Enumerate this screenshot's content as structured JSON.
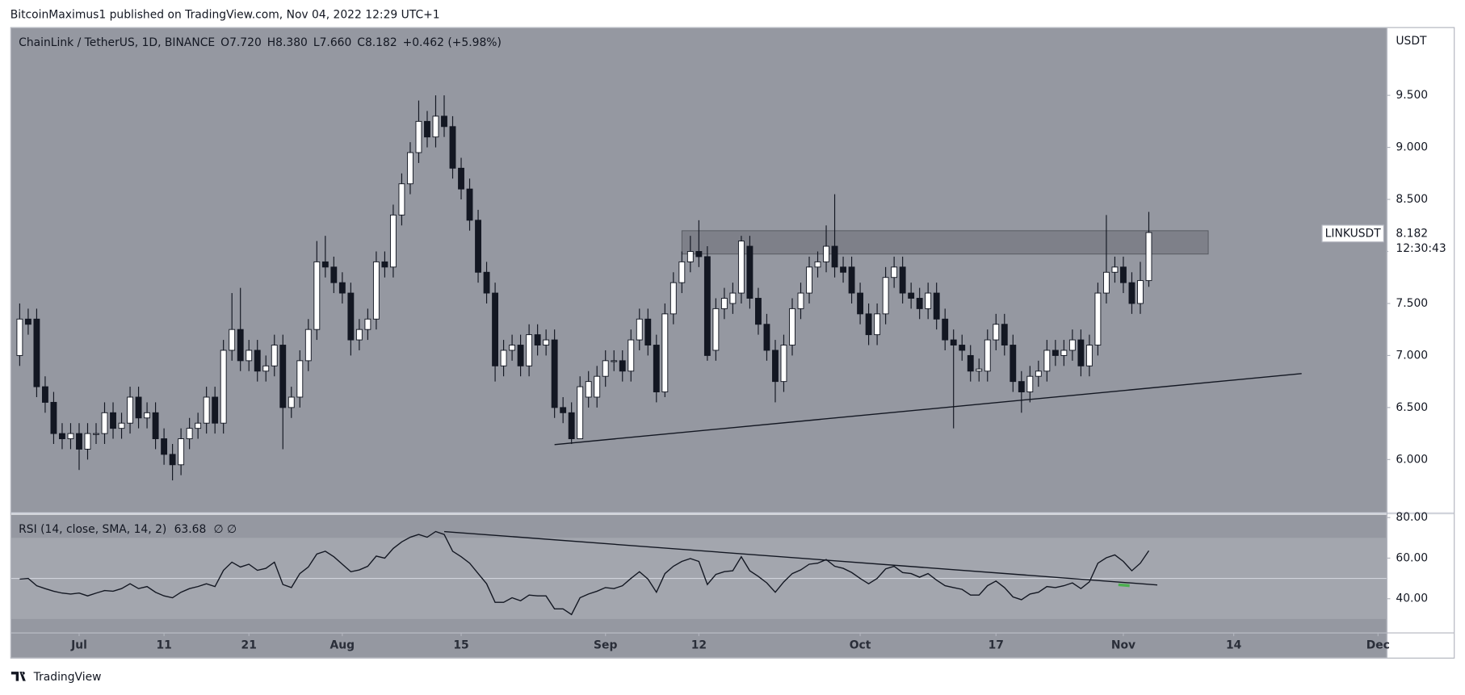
{
  "published": "BitcoinMaximus1 published on TradingView.com, Nov 04, 2022 12:29 UTC+1",
  "footer": "TradingView",
  "chart_data": {
    "type": "candlestick",
    "legend": {
      "symbol": "ChainLink / TetherUS, 1D, BINANCE",
      "fields": [
        {
          "key": "O",
          "value": "7.720"
        },
        {
          "key": "H",
          "value": "8.380"
        },
        {
          "key": "L",
          "value": "7.660"
        },
        {
          "key": "C",
          "value": "8.182"
        }
      ],
      "change": "+0.462 (+5.98%)"
    },
    "scale_label": "USDT",
    "price_label": {
      "symbol": "LINKUSDT",
      "countdown": "12:30:43"
    },
    "up_color": "#ffffff",
    "down_color": "#131722",
    "background": "#9598a1",
    "x": [
      "2022-06-24",
      "2022-06-25",
      "2022-06-26",
      "2022-06-27",
      "2022-06-28",
      "2022-06-29",
      "2022-06-30",
      "2022-07-01",
      "2022-07-02",
      "2022-07-03",
      "2022-07-04",
      "2022-07-05",
      "2022-07-06",
      "2022-07-07",
      "2022-07-08",
      "2022-07-09",
      "2022-07-10",
      "2022-07-11",
      "2022-07-12",
      "2022-07-13",
      "2022-07-14",
      "2022-07-15",
      "2022-07-16",
      "2022-07-17",
      "2022-07-18",
      "2022-07-19",
      "2022-07-20",
      "2022-07-21",
      "2022-07-22",
      "2022-07-23",
      "2022-07-24",
      "2022-07-25",
      "2022-07-26",
      "2022-07-27",
      "2022-07-28",
      "2022-07-29",
      "2022-07-30",
      "2022-07-31",
      "2022-08-01",
      "2022-08-02",
      "2022-08-03",
      "2022-08-04",
      "2022-08-05",
      "2022-08-06",
      "2022-08-07",
      "2022-08-08",
      "2022-08-09",
      "2022-08-10",
      "2022-08-11",
      "2022-08-12",
      "2022-08-13",
      "2022-08-14",
      "2022-08-15",
      "2022-08-16",
      "2022-08-17",
      "2022-08-18",
      "2022-08-19",
      "2022-08-20",
      "2022-08-21",
      "2022-08-22",
      "2022-08-23",
      "2022-08-24",
      "2022-08-25",
      "2022-08-26",
      "2022-08-27",
      "2022-08-28",
      "2022-08-29",
      "2022-08-30",
      "2022-08-31",
      "2022-09-01",
      "2022-09-02",
      "2022-09-03",
      "2022-09-04",
      "2022-09-05",
      "2022-09-06",
      "2022-09-07",
      "2022-09-08",
      "2022-09-09",
      "2022-09-10",
      "2022-09-11",
      "2022-09-12",
      "2022-09-13",
      "2022-09-14",
      "2022-09-15",
      "2022-09-16",
      "2022-09-17",
      "2022-09-18",
      "2022-09-19",
      "2022-09-20",
      "2022-09-21",
      "2022-09-22",
      "2022-09-23",
      "2022-09-24",
      "2022-09-25",
      "2022-09-26",
      "2022-09-27",
      "2022-09-28",
      "2022-09-29",
      "2022-09-30",
      "2022-10-01",
      "2022-10-02",
      "2022-10-03",
      "2022-10-04",
      "2022-10-05",
      "2022-10-06",
      "2022-10-07",
      "2022-10-08",
      "2022-10-09",
      "2022-10-10",
      "2022-10-11",
      "2022-10-12",
      "2022-10-13",
      "2022-10-14",
      "2022-10-15",
      "2022-10-16",
      "2022-10-17",
      "2022-10-18",
      "2022-10-19",
      "2022-10-20",
      "2022-10-21",
      "2022-10-22",
      "2022-10-23",
      "2022-10-24",
      "2022-10-25",
      "2022-10-26",
      "2022-10-27",
      "2022-10-28",
      "2022-10-29",
      "2022-10-30",
      "2022-10-31",
      "2022-11-01",
      "2022-11-02",
      "2022-11-03",
      "2022-11-04"
    ],
    "open": [
      7.0,
      7.35,
      7.35,
      6.7,
      6.55,
      6.25,
      6.2,
      6.25,
      6.1,
      6.25,
      6.25,
      6.45,
      6.3,
      6.35,
      6.6,
      6.4,
      6.45,
      6.2,
      6.05,
      5.95,
      6.2,
      6.3,
      6.35,
      6.6,
      6.35,
      7.05,
      7.25,
      6.95,
      7.05,
      6.85,
      6.9,
      7.1,
      6.5,
      6.6,
      6.95,
      7.25,
      7.9,
      7.85,
      7.7,
      7.6,
      7.15,
      7.25,
      7.35,
      7.9,
      7.85,
      8.35,
      8.65,
      8.95,
      9.25,
      9.1,
      9.3,
      9.2,
      8.8,
      8.6,
      8.3,
      7.8,
      7.6,
      6.9,
      7.05,
      7.1,
      6.9,
      7.2,
      7.1,
      7.15,
      6.5,
      6.45,
      6.2,
      6.6,
      6.6,
      6.8,
      6.95,
      6.95,
      6.85,
      7.15,
      7.35,
      7.1,
      6.65,
      7.4,
      7.7,
      7.9,
      8.0,
      7.95,
      7.05,
      7.45,
      7.5,
      7.6,
      8.05,
      7.55,
      7.3,
      7.05,
      6.75,
      7.1,
      7.45,
      7.6,
      7.85,
      7.9,
      8.05,
      7.85,
      7.85,
      7.6,
      7.4,
      7.2,
      7.4,
      7.75,
      7.85,
      7.6,
      7.55,
      7.45,
      7.6,
      7.35,
      7.15,
      7.1,
      7.0,
      6.85,
      6.85,
      7.15,
      7.3,
      7.1,
      6.75,
      6.65,
      6.8,
      6.85,
      7.05,
      7.0,
      7.05,
      7.15,
      6.9,
      7.1,
      7.6,
      7.8,
      7.85,
      7.7,
      7.5,
      7.72
    ],
    "high": [
      7.5,
      7.45,
      7.45,
      6.8,
      6.65,
      6.35,
      6.35,
      6.35,
      6.35,
      6.35,
      6.55,
      6.55,
      6.45,
      6.7,
      6.7,
      6.55,
      6.55,
      6.3,
      6.15,
      6.3,
      6.4,
      6.45,
      6.7,
      6.7,
      7.15,
      7.6,
      7.65,
      7.15,
      7.15,
      7.0,
      7.2,
      7.2,
      6.7,
      7.05,
      7.35,
      8.1,
      8.15,
      7.95,
      7.8,
      7.7,
      7.35,
      7.45,
      8.0,
      8.0,
      8.45,
      8.75,
      9.05,
      9.45,
      9.35,
      9.5,
      9.5,
      9.3,
      8.9,
      8.7,
      8.4,
      7.9,
      7.7,
      7.15,
      7.2,
      7.2,
      7.3,
      7.3,
      7.25,
      7.25,
      6.6,
      6.55,
      6.8,
      6.85,
      6.9,
      7.05,
      7.05,
      7.05,
      7.25,
      7.45,
      7.45,
      7.2,
      7.5,
      7.8,
      8.0,
      8.15,
      8.3,
      8.05,
      7.55,
      7.65,
      7.7,
      8.15,
      8.15,
      7.65,
      7.4,
      7.15,
      7.2,
      7.55,
      7.7,
      7.95,
      8.0,
      8.25,
      8.55,
      7.95,
      7.95,
      7.7,
      7.5,
      7.5,
      7.85,
      7.95,
      7.95,
      7.7,
      7.65,
      7.7,
      7.7,
      7.45,
      7.25,
      7.2,
      7.1,
      6.97,
      7.25,
      7.4,
      7.4,
      7.2,
      6.85,
      6.9,
      6.95,
      7.15,
      7.15,
      7.15,
      7.25,
      7.25,
      7.2,
      7.7,
      8.35,
      7.95,
      7.95,
      7.8,
      7.9,
      8.38
    ],
    "low": [
      6.9,
      7.2,
      6.6,
      6.45,
      6.15,
      6.1,
      6.1,
      5.9,
      6.0,
      6.15,
      6.15,
      6.2,
      6.2,
      6.25,
      6.3,
      6.3,
      6.1,
      5.95,
      5.8,
      5.85,
      6.1,
      6.2,
      6.25,
      6.25,
      6.25,
      6.95,
      6.85,
      6.85,
      6.75,
      6.75,
      6.8,
      6.1,
      6.4,
      6.5,
      6.85,
      7.15,
      7.75,
      7.6,
      7.5,
      7.0,
      7.05,
      7.15,
      7.25,
      7.75,
      7.75,
      8.25,
      8.55,
      8.85,
      9.0,
      9.0,
      9.1,
      8.7,
      8.5,
      8.2,
      7.7,
      7.5,
      6.75,
      6.8,
      6.95,
      6.8,
      6.8,
      7.0,
      7.0,
      6.4,
      6.35,
      6.15,
      6.2,
      6.5,
      6.5,
      6.7,
      6.85,
      6.75,
      6.75,
      7.05,
      7.0,
      6.55,
      6.6,
      7.3,
      7.6,
      7.8,
      7.85,
      6.95,
      6.95,
      7.35,
      7.4,
      7.5,
      7.45,
      7.2,
      6.95,
      6.55,
      6.65,
      7.0,
      7.35,
      7.5,
      7.75,
      7.8,
      7.75,
      7.7,
      7.5,
      7.3,
      7.1,
      7.1,
      7.3,
      7.65,
      7.5,
      7.45,
      7.35,
      7.35,
      7.25,
      7.05,
      6.3,
      6.95,
      6.75,
      6.75,
      6.75,
      7.05,
      7.0,
      6.65,
      6.45,
      6.55,
      6.7,
      6.75,
      6.9,
      6.9,
      6.95,
      6.8,
      6.8,
      7.0,
      7.5,
      7.7,
      7.6,
      7.4,
      7.4,
      7.66
    ],
    "close": [
      7.35,
      7.3,
      6.7,
      6.55,
      6.25,
      6.2,
      6.25,
      6.1,
      6.25,
      6.25,
      6.45,
      6.3,
      6.35,
      6.6,
      6.4,
      6.45,
      6.2,
      6.05,
      5.95,
      6.2,
      6.3,
      6.35,
      6.6,
      6.35,
      7.05,
      7.25,
      6.95,
      7.05,
      6.85,
      6.9,
      7.1,
      6.5,
      6.6,
      6.95,
      7.25,
      7.9,
      7.85,
      7.7,
      7.6,
      7.15,
      7.25,
      7.35,
      7.9,
      7.85,
      8.35,
      8.65,
      8.95,
      9.25,
      9.1,
      9.3,
      9.2,
      8.8,
      8.6,
      8.3,
      7.8,
      7.6,
      6.9,
      7.05,
      7.1,
      6.9,
      7.2,
      7.1,
      7.15,
      6.5,
      6.45,
      6.2,
      6.7,
      6.75,
      6.8,
      6.95,
      6.95,
      6.85,
      7.15,
      7.35,
      7.1,
      6.65,
      7.4,
      7.7,
      7.9,
      8.0,
      7.95,
      7.0,
      7.45,
      7.55,
      7.6,
      8.1,
      7.55,
      7.3,
      7.05,
      6.75,
      7.1,
      7.45,
      7.6,
      7.85,
      7.9,
      8.05,
      7.85,
      7.8,
      7.6,
      7.4,
      7.2,
      7.4,
      7.75,
      7.85,
      7.6,
      7.55,
      7.45,
      7.6,
      7.35,
      7.15,
      7.1,
      7.05,
      6.85,
      6.87,
      7.15,
      7.3,
      7.1,
      6.75,
      6.65,
      6.8,
      6.85,
      7.05,
      7.0,
      7.05,
      7.15,
      6.9,
      7.1,
      7.6,
      7.8,
      7.85,
      7.7,
      7.5,
      7.72,
      8.182
    ],
    "xlim": [
      "2022-06-23",
      "2022-12-02"
    ],
    "xticks": [
      {
        "value": "2022-07-01",
        "label": "Jul"
      },
      {
        "value": "2022-07-11",
        "label": "11"
      },
      {
        "value": "2022-07-21",
        "label": "21"
      },
      {
        "value": "2022-08-01",
        "label": "Aug"
      },
      {
        "value": "2022-08-15",
        "label": "15"
      },
      {
        "value": "2022-09-01",
        "label": "Sep"
      },
      {
        "value": "2022-09-12",
        "label": "12"
      },
      {
        "value": "2022-10-01",
        "label": "Oct"
      },
      {
        "value": "2022-10-17",
        "label": "17"
      },
      {
        "value": "2022-11-01",
        "label": "Nov"
      },
      {
        "value": "2022-11-14",
        "label": "14"
      },
      {
        "value": "2022-12-01",
        "label": "Dec"
      }
    ],
    "ylim": [
      5.488,
      10.147
    ],
    "yticks": [
      {
        "value": 6,
        "label": "6.000"
      },
      {
        "value": 6.5,
        "label": "6.500"
      },
      {
        "value": 7,
        "label": "7.000"
      },
      {
        "value": 7.5,
        "label": "7.500"
      },
      {
        "value": 8,
        "label": "8.000"
      },
      {
        "value": 8.5,
        "label": "8.500"
      },
      {
        "value": 9,
        "label": "9.000"
      },
      {
        "value": 9.5,
        "label": "9.500"
      }
    ],
    "zones": [
      {
        "x": [
          "2022-09-10",
          "2022-11-11"
        ],
        "y": [
          7.975,
          8.199
        ],
        "color": "#6b6e76"
      }
    ],
    "trendlines": [
      {
        "x": [
          "2022-08-26",
          "2022-11-22"
        ],
        "y": [
          6.144,
          6.826
        ],
        "color": "#131722"
      }
    ],
    "rsi": {
      "title": "RSI (14, close, SMA, 14, 2)",
      "extra": "∅ ∅",
      "color": "#131722",
      "values": [
        49.7,
        50,
        46.4,
        45,
        43.7,
        42.8,
        42.3,
        42.8,
        41.4,
        42.8,
        44,
        43.7,
        45,
        47.4,
        45,
        46,
        43.2,
        41.4,
        40.5,
        43.2,
        45,
        46,
        47.4,
        46,
        54,
        58,
        55.6,
        57,
        54,
        55,
        58,
        47,
        45.5,
        52.4,
        55.6,
        62,
        63.4,
        60.7,
        57,
        53.3,
        54.2,
        56,
        61,
        60,
        64.8,
        68,
        70.3,
        71.7,
        70.3,
        73.1,
        71.7,
        63.4,
        60.7,
        57.5,
        52.4,
        47.4,
        38.2,
        38.2,
        40.5,
        39,
        41.8,
        41.4,
        41.4,
        35,
        35,
        32.2,
        40.5,
        42.3,
        43.7,
        45.5,
        45,
        46.4,
        50,
        53.3,
        49.7,
        43.2,
        52.4,
        56,
        58.4,
        59.8,
        58.4,
        47,
        52,
        53.3,
        53.8,
        60.7,
        53.8,
        51,
        47.8,
        43.2,
        48.3,
        52.4,
        54.2,
        57,
        57.5,
        59.3,
        56,
        55,
        52.9,
        50,
        47.4,
        50,
        54.7,
        56,
        52.9,
        52.4,
        50.6,
        52.4,
        49.2,
        46.4,
        45.5,
        44.6,
        41.8,
        41.8,
        46.4,
        48.7,
        45.5,
        40.9,
        39.5,
        42.3,
        43.2,
        46,
        45.5,
        46.4,
        47.8,
        45,
        48.3,
        57.5,
        60.2,
        61.6,
        58.4,
        53.8,
        57.5,
        63.68
      ],
      "ylim": [
        23.4,
        81.4
      ],
      "yticks": [
        {
          "value": 80,
          "label": "80.00"
        },
        {
          "value": 60,
          "label": "60.00"
        },
        {
          "value": 40,
          "label": "40.00"
        }
      ],
      "bands": [
        30,
        70
      ],
      "midline": 50,
      "trendlines": [
        {
          "x": [
            "2022-08-13",
            "2022-11-05"
          ],
          "y": [
            73.1,
            46.8
          ],
          "color": "#131722"
        }
      ]
    }
  }
}
